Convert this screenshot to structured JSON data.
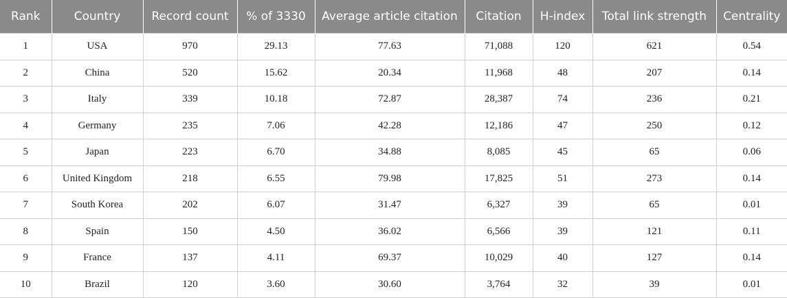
{
  "table": {
    "header": [
      "Rank",
      "Country",
      "Record count",
      "% of 3330",
      "Average article citation",
      "Citation",
      "H-index",
      "Total link strength",
      "Centrality"
    ],
    "rows": [
      [
        "1",
        "USA",
        "970",
        "29.13",
        "77.63",
        "71,088",
        "120",
        "621",
        "0.54"
      ],
      [
        "2",
        "China",
        "520",
        "15.62",
        "20.34",
        "11,968",
        "48",
        "207",
        "0.14"
      ],
      [
        "3",
        "Italy",
        "339",
        "10.18",
        "72.87",
        "28,387",
        "74",
        "236",
        "0.21"
      ],
      [
        "4",
        "Germany",
        "235",
        "7.06",
        "42.28",
        "12,186",
        "47",
        "250",
        "0.12"
      ],
      [
        "5",
        "Japan",
        "223",
        "6.70",
        "34.88",
        "8,085",
        "45",
        "65",
        "0.06"
      ],
      [
        "6",
        "United Kingdom",
        "218",
        "6.55",
        "79.98",
        "17,825",
        "51",
        "273",
        "0.14"
      ],
      [
        "7",
        "South Korea",
        "202",
        "6.07",
        "31.47",
        "6,327",
        "39",
        "65",
        "0.01"
      ],
      [
        "8",
        "Spain",
        "150",
        "4.50",
        "36.02",
        "6,566",
        "39",
        "121",
        "0.11"
      ],
      [
        "9",
        "France",
        "137",
        "4.11",
        "69.37",
        "10,029",
        "40",
        "127",
        "0.14"
      ],
      [
        "10",
        "Brazil",
        "120",
        "3.60",
        "30.60",
        "3,764",
        "32",
        "39",
        "0.01"
      ]
    ]
  }
}
